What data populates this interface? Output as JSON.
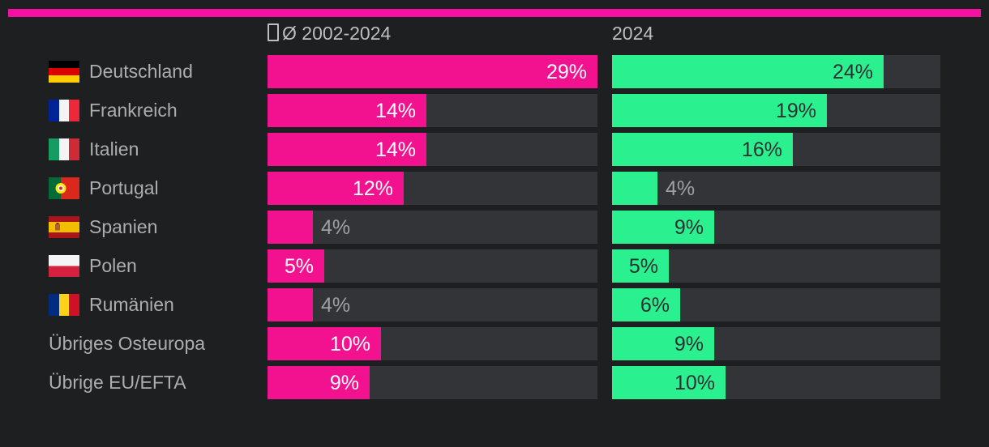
{
  "accent_colors": {
    "top_bar": "#f410a0",
    "bar_average": "#f2118e",
    "bar_2024": "#2bf08f",
    "track": "#333438",
    "background": "#1e1f21",
    "header_text": "#bdbebf",
    "category_text": "#abadaf",
    "value_on_pink": "#ffffff",
    "value_on_green": "#2e2f32",
    "value_outside": "#9ea0a2"
  },
  "icons": {
    "header_prefix": "missing-glyph-box",
    "flags": [
      "flag-germany",
      "flag-france",
      "flag-italy",
      "flag-portugal",
      "flag-spain",
      "flag-poland",
      "flag-romania",
      null,
      null
    ]
  },
  "chart_data": {
    "type": "bar",
    "orientation": "horizontal",
    "title": "",
    "categories": [
      "Deutschland",
      "Frankreich",
      "Italien",
      "Portugal",
      "Spanien",
      "Polen",
      "Rumänien",
      "Übriges Osteuropa",
      "Übrige EU/EFTA"
    ],
    "series": [
      {
        "name": "Ø 2002-2024",
        "values": [
          29,
          14,
          14,
          12,
          4,
          5,
          4,
          10,
          9
        ]
      },
      {
        "name": "2024",
        "values": [
          24,
          19,
          16,
          4,
          9,
          5,
          6,
          9,
          10
        ]
      }
    ],
    "value_suffix": "%",
    "value_labels": [
      [
        "29%",
        "14%",
        "14%",
        "12%",
        "4%",
        "5%",
        "4%",
        "10%",
        "9%"
      ],
      [
        "24%",
        "19%",
        "16%",
        "4%",
        "9%",
        "5%",
        "6%",
        "9%",
        "10%"
      ]
    ],
    "scale_max": 29,
    "grid": false,
    "legend_position": "column-headers"
  }
}
